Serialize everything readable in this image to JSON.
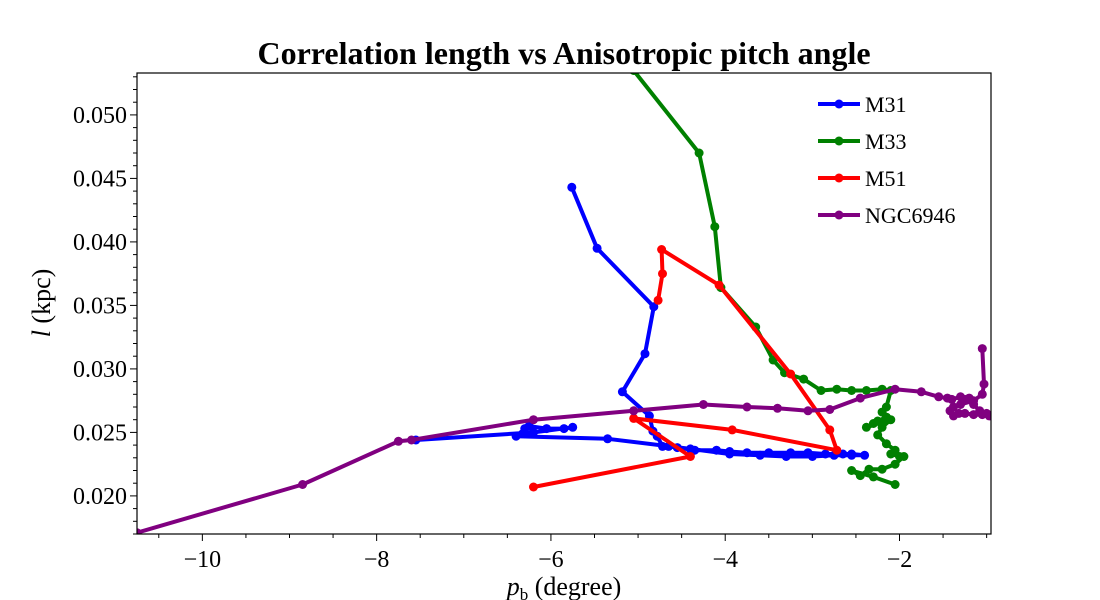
{
  "chart_data": {
    "type": "line",
    "title": "Correlation length vs Anisotropic pitch angle",
    "xlabel": {
      "main": "p",
      "sub": "b",
      "rest": " (degree)"
    },
    "ylabel": {
      "main": "l",
      "rest": " (kpc)"
    },
    "xlim": [
      -10.75,
      -0.95
    ],
    "ylim": [
      0.017,
      0.0533
    ],
    "x_ticks": [
      -10,
      -8,
      -6,
      -4,
      -2
    ],
    "x_tick_labels": [
      "−10",
      "−8",
      "−6",
      "−4",
      "−2"
    ],
    "y_ticks": [
      0.02,
      0.025,
      0.03,
      0.035,
      0.04,
      0.045,
      0.05
    ],
    "y_tick_labels": [
      "0.020",
      "0.025",
      "0.030",
      "0.035",
      "0.040",
      "0.045",
      "0.050"
    ],
    "grid": false,
    "legend_position": "upper-right",
    "series": [
      {
        "name": "M31",
        "color": "#0000ff",
        "x": [
          -5.76,
          -5.47,
          -4.82,
          -4.92,
          -5.18,
          -4.87,
          -4.83,
          -4.78,
          -4.72,
          -4.65,
          -4.55,
          -4.35,
          -4.1,
          -3.95,
          -3.75,
          -3.5,
          -3.25,
          -3.05,
          -2.85,
          -2.65,
          -2.55,
          -2.4,
          -2.55,
          -2.75,
          -3.0,
          -3.3,
          -3.6,
          -3.95,
          -4.4,
          -5.35,
          -6.4,
          -6.3,
          -6.25,
          -6.05,
          -5.85,
          -5.75,
          -6.2,
          -7.55
        ],
        "y": [
          0.0443,
          0.0395,
          0.0349,
          0.0312,
          0.0282,
          0.0263,
          0.0251,
          0.0247,
          0.0239,
          0.0239,
          0.0238,
          0.0236,
          0.0236,
          0.0235,
          0.0234,
          0.0234,
          0.0234,
          0.0234,
          0.0233,
          0.0233,
          0.0233,
          0.0232,
          0.0232,
          0.0232,
          0.0231,
          0.0231,
          0.0232,
          0.0233,
          0.0237,
          0.0245,
          0.0247,
          0.0253,
          0.0255,
          0.0253,
          0.0253,
          0.0254,
          0.025,
          0.0244
        ]
      },
      {
        "name": "M33",
        "color": "#008000",
        "x": [
          -5.05,
          -4.3,
          -4.12,
          -4.05,
          -3.65,
          -3.45,
          -3.32,
          -3.1,
          -2.9,
          -2.72,
          -2.55,
          -2.38,
          -2.2,
          -2.1,
          -2.15,
          -2.2,
          -2.15,
          -2.25,
          -2.3,
          -2.38,
          -2.2,
          -2.15,
          -2.1,
          -2.2,
          -2.25,
          -2.15,
          -2.05,
          -2.1,
          -2.0,
          -1.95,
          -2.05,
          -2.2,
          -2.35,
          -2.45,
          -2.55,
          -2.3,
          -2.05
        ],
        "y": [
          0.0535,
          0.047,
          0.0412,
          0.0364,
          0.0333,
          0.0307,
          0.0297,
          0.0292,
          0.0283,
          0.0284,
          0.0283,
          0.0283,
          0.0284,
          0.0283,
          0.027,
          0.0266,
          0.0262,
          0.0259,
          0.0257,
          0.0254,
          0.0258,
          0.0262,
          0.026,
          0.0254,
          0.0248,
          0.0241,
          0.0236,
          0.0233,
          0.0231,
          0.0231,
          0.0225,
          0.0221,
          0.0221,
          0.0216,
          0.022,
          0.0215,
          0.0209
        ]
      },
      {
        "name": "M51",
        "color": "#ff0000",
        "x": [
          -4.77,
          -4.72,
          -4.73,
          -4.07,
          -3.25,
          -2.8,
          -2.72,
          -3.92,
          -5.05,
          -4.4,
          -6.2
        ],
        "y": [
          0.0354,
          0.0375,
          0.0394,
          0.0366,
          0.0296,
          0.0252,
          0.0236,
          0.0252,
          0.0261,
          0.0231,
          0.0207
        ]
      },
      {
        "name": "NGC6946",
        "color": "#800080",
        "x": [
          -10.75,
          -8.85,
          -7.75,
          -7.6,
          -6.2,
          -5.05,
          -4.25,
          -3.75,
          -3.4,
          -3.05,
          -2.8,
          -2.45,
          -2.05,
          -1.75,
          -1.55,
          -1.45,
          -1.4,
          -1.3,
          -1.25,
          -1.2,
          -1.15,
          -1.08,
          -1.0,
          -0.97,
          -1.05,
          -1.15,
          -1.25,
          -1.32,
          -1.38,
          -1.42,
          -1.38,
          -1.3,
          -1.15,
          -1.05,
          -1.03,
          -1.05
        ],
        "y": [
          0.0171,
          0.0209,
          0.0243,
          0.0244,
          0.026,
          0.0267,
          0.0272,
          0.027,
          0.0269,
          0.0267,
          0.0268,
          0.0277,
          0.0284,
          0.0282,
          0.0278,
          0.0277,
          0.0276,
          0.0278,
          0.0276,
          0.0277,
          0.0272,
          0.0267,
          0.0265,
          0.0263,
          0.0264,
          0.0264,
          0.0265,
          0.0265,
          0.0263,
          0.0267,
          0.027,
          0.0272,
          0.0275,
          0.028,
          0.0288,
          0.0316
        ]
      }
    ]
  }
}
